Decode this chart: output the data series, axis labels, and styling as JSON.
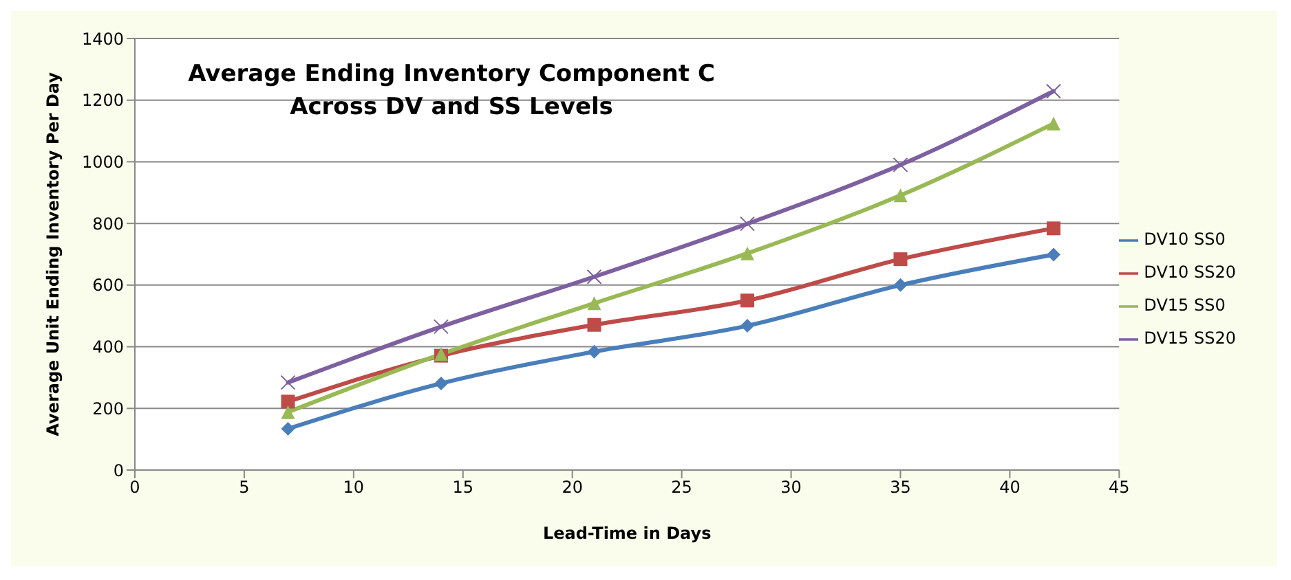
{
  "chart_data": {
    "type": "line",
    "title": "Average Ending Inventory Component C\nAcross DV and SS Levels",
    "xlabel": "Lead-Time in Days",
    "ylabel": "Average Unit Ending Inventory Per Day",
    "x": [
      7,
      14,
      21,
      28,
      35,
      42
    ],
    "series": [
      {
        "name": "DV10 SS0",
        "color": "#4a7ebb",
        "marker": "diamond",
        "values": [
          134,
          281,
          384,
          468,
          600,
          699
        ]
      },
      {
        "name": "DV10 SS20",
        "color": "#be4b48",
        "marker": "square",
        "values": [
          222,
          371,
          471,
          550,
          684,
          784
        ]
      },
      {
        "name": "DV15 SS0",
        "color": "#98b954",
        "marker": "triangle",
        "values": [
          188,
          376,
          541,
          703,
          891,
          1124
        ]
      },
      {
        "name": "DV15 SS20",
        "color": "#7d60a0",
        "marker": "cross",
        "values": [
          284,
          465,
          627,
          799,
          990,
          1229
        ]
      }
    ],
    "xlim": [
      0,
      45
    ],
    "xticks": [
      0,
      5,
      10,
      15,
      20,
      25,
      30,
      35,
      40,
      45
    ],
    "ylim": [
      0,
      1400
    ],
    "yticks": [
      0,
      200,
      400,
      600,
      800,
      1000,
      1200,
      1400
    ],
    "grid": "y",
    "legend": "right"
  }
}
